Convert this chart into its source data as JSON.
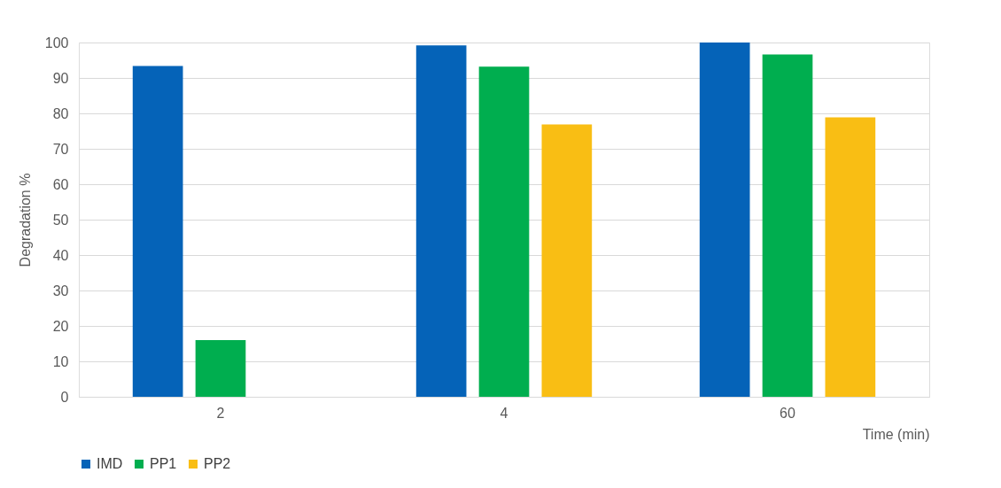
{
  "chart_data": {
    "type": "bar",
    "xlabel": "Time (min)",
    "ylabel": "Degradation %",
    "categories": [
      "2",
      "4",
      "60"
    ],
    "series": [
      {
        "name": "IMD",
        "color": "#0563b8",
        "values": [
          93.4,
          99.2,
          100
        ]
      },
      {
        "name": "PP1",
        "color": "#00ae4f",
        "values": [
          16,
          93.2,
          96.6
        ]
      },
      {
        "name": "PP2",
        "color": "#f9be14",
        "values": [
          null,
          76.9,
          78.9
        ]
      }
    ],
    "ylim": [
      0,
      100
    ],
    "yticks": [
      0,
      10,
      20,
      30,
      40,
      50,
      60,
      70,
      80,
      90,
      100
    ],
    "grid": "y",
    "legend": "bottom"
  }
}
